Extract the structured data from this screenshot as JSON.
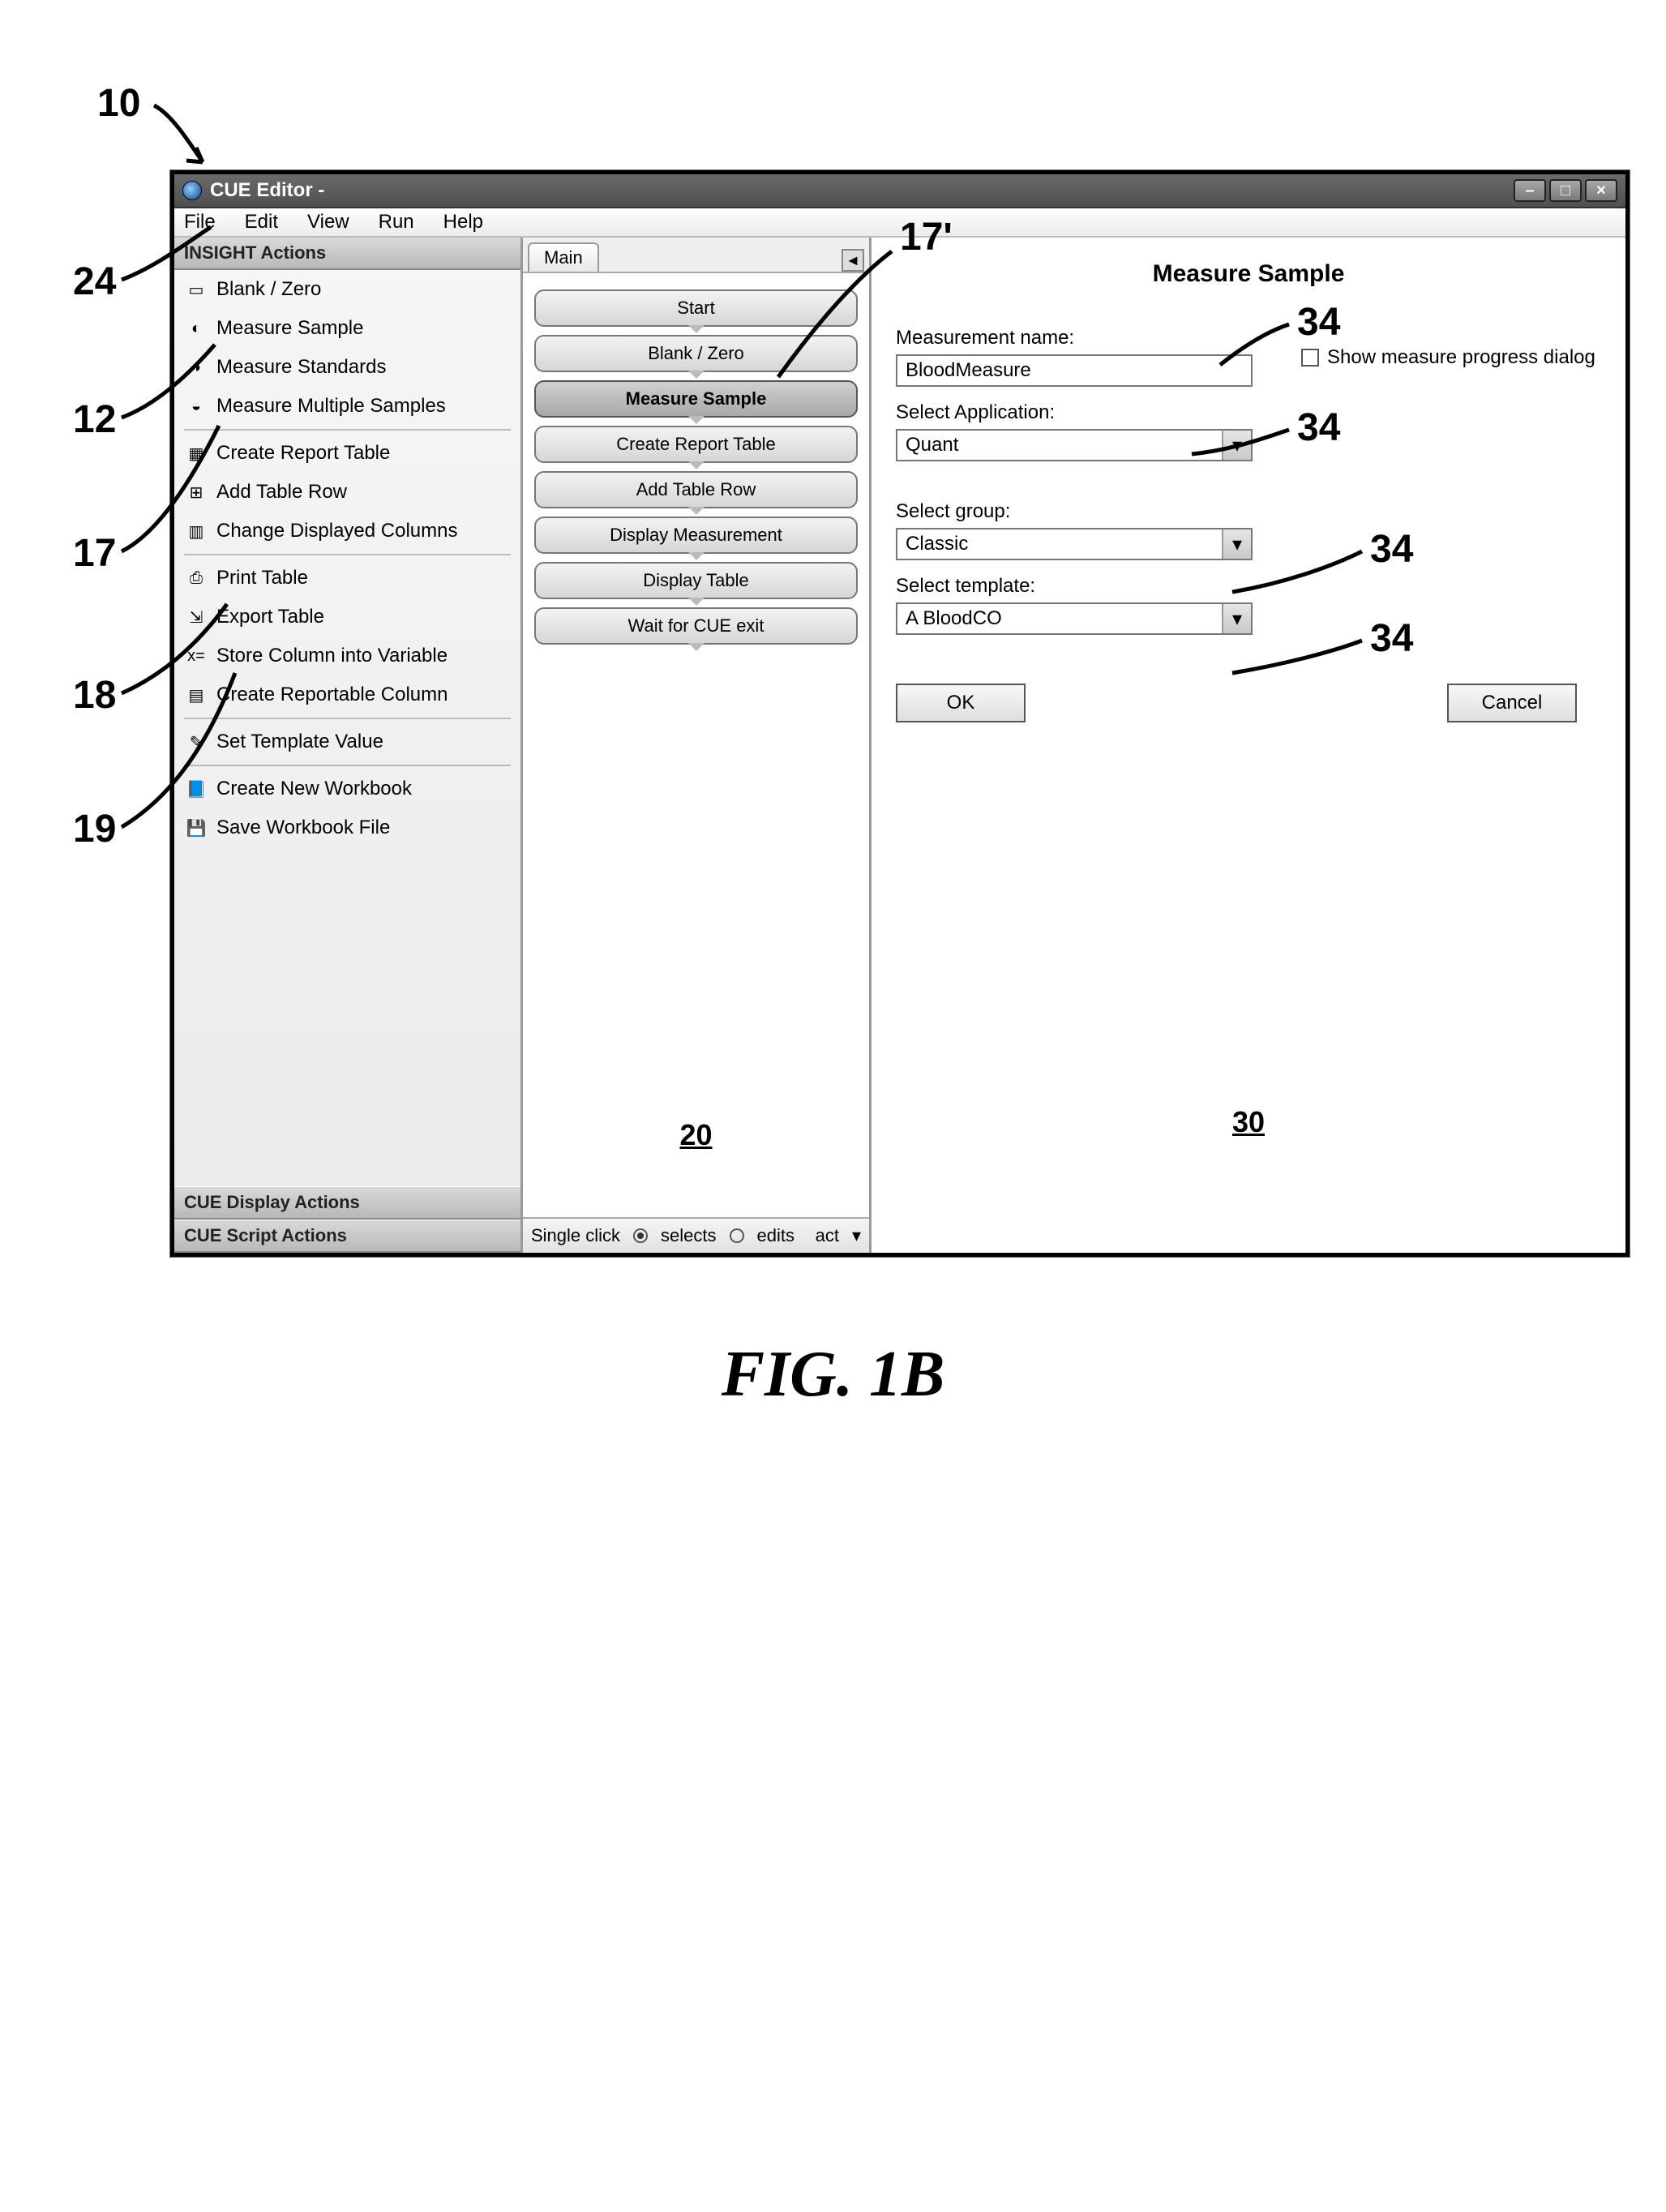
{
  "figure_label": "FIG. 1B",
  "callouts": {
    "c10": "10",
    "c24": "24",
    "c12": "12",
    "c17": "17",
    "c18": "18",
    "c19": "19",
    "c17p": "17'",
    "c30": "30",
    "c20": "20",
    "c34a": "34",
    "c34b": "34",
    "c34c": "34",
    "c34d": "34"
  },
  "window": {
    "title": "CUE Editor -"
  },
  "menubar": [
    "File",
    "Edit",
    "View",
    "Run",
    "Help"
  ],
  "left": {
    "header": "INSIGHT Actions",
    "footers": [
      "CUE Display Actions",
      "CUE Script Actions"
    ],
    "groups": [
      [
        {
          "icon": "blank-zero-icon",
          "label": "Blank / Zero"
        },
        {
          "icon": "measure-sample-icon",
          "label": "Measure Sample"
        },
        {
          "icon": "measure-standards-icon",
          "label": "Measure Standards"
        },
        {
          "icon": "measure-multiple-icon",
          "label": "Measure Multiple Samples"
        }
      ],
      [
        {
          "icon": "create-report-table-icon",
          "label": "Create Report Table"
        },
        {
          "icon": "add-table-row-icon",
          "label": "Add Table Row"
        },
        {
          "icon": "change-columns-icon",
          "label": "Change Displayed Columns"
        }
      ],
      [
        {
          "icon": "print-table-icon",
          "label": "Print Table"
        },
        {
          "icon": "export-table-icon",
          "label": "Export Table"
        },
        {
          "icon": "store-column-icon",
          "label": "Store Column into Variable"
        },
        {
          "icon": "create-column-icon",
          "label": "Create Reportable Column"
        }
      ],
      [
        {
          "icon": "set-template-icon",
          "label": "Set Template Value"
        }
      ],
      [
        {
          "icon": "new-workbook-icon",
          "label": "Create New Workbook"
        },
        {
          "icon": "save-workbook-icon",
          "label": "Save Workbook File"
        }
      ]
    ]
  },
  "center": {
    "tab": "Main",
    "steps": [
      "Start",
      "Blank / Zero",
      "Measure Sample",
      "Create Report Table",
      "Add Table Row",
      "Display Measurement",
      "Display Table",
      "Wait for CUE exit"
    ],
    "selected_index": 2,
    "footer": {
      "prefix": "Single click",
      "opt_selects": "selects",
      "opt_edits": "edits",
      "tail": "act"
    }
  },
  "right": {
    "title": "Measure Sample",
    "measurement_name_label": "Measurement name:",
    "measurement_name_value": "BloodMeasure",
    "show_progress_label": "Show measure progress dialog",
    "select_application_label": "Select Application:",
    "select_application_value": "Quant",
    "select_group_label": "Select group:",
    "select_group_value": "Classic",
    "select_template_label": "Select template:",
    "select_template_value": "A BloodCO",
    "ok_label": "OK",
    "cancel_label": "Cancel"
  },
  "style": {
    "window_border": "#000000",
    "titlebar_bg": "#5a5a5a",
    "panel_header_bg": "#c8c8c8",
    "step_bg": "#e2e2e2",
    "step_selected_bg": "#b0b0b0",
    "input_border": "#777777",
    "font_family": "Arial",
    "callout_font_size_pt": 36,
    "figure_label_font_size_pt": 60
  }
}
